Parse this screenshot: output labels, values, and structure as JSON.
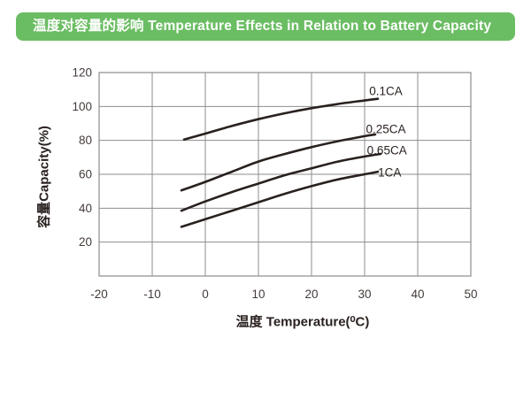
{
  "header": {
    "title": "温度对容量的影响 Temperature Effects in Relation to Battery Capacity",
    "bg_color": "#6bbd63",
    "text_color": "#ffffff"
  },
  "chart_data": {
    "type": "line",
    "title": "温度对容量的影响 Temperature Effects in Relation to Battery Capacity",
    "xlabel": "温度 Temperature(⁰C)",
    "ylabel": "容量Capacity(%)",
    "xlim": [
      -20,
      50
    ],
    "ylim": [
      0,
      120
    ],
    "xticks": [
      -20,
      -10,
      0,
      10,
      20,
      30,
      40,
      50
    ],
    "yticks": [
      20,
      40,
      60,
      80,
      100,
      120
    ],
    "grid": true,
    "legend_position": "inline-right-of-curves",
    "line_color": "#29211f",
    "grid_color": "#8d8d8d",
    "tick_color": "#443c3a",
    "series": [
      {
        "name": "0.1CA",
        "label_at": [
          34,
          109
        ],
        "points": [
          [
            -4,
            80.5
          ],
          [
            0,
            84
          ],
          [
            5,
            88.5
          ],
          [
            10,
            92.5
          ],
          [
            15,
            96
          ],
          [
            20,
            99
          ],
          [
            25,
            101.5
          ],
          [
            30,
            103.5
          ],
          [
            32.5,
            104.5
          ]
        ]
      },
      {
        "name": "0.25CA",
        "label_at": [
          34,
          86.5
        ],
        "points": [
          [
            -4.5,
            50.5
          ],
          [
            0,
            55.5
          ],
          [
            5,
            61.5
          ],
          [
            10,
            67.5
          ],
          [
            15,
            72
          ],
          [
            20,
            76
          ],
          [
            25,
            79.5
          ],
          [
            30,
            82.5
          ],
          [
            32,
            83.5
          ]
        ]
      },
      {
        "name": "0.65CA",
        "label_at": [
          34.2,
          74
        ],
        "points": [
          [
            -4.5,
            38.5
          ],
          [
            0,
            44
          ],
          [
            5,
            49.5
          ],
          [
            10,
            54.5
          ],
          [
            15,
            59.5
          ],
          [
            20,
            63.5
          ],
          [
            25,
            67.5
          ],
          [
            30,
            70.5
          ],
          [
            33,
            72
          ]
        ]
      },
      {
        "name": "1CA",
        "label_at": [
          34.7,
          61
        ],
        "points": [
          [
            -4.5,
            29
          ],
          [
            0,
            33.5
          ],
          [
            5,
            38.5
          ],
          [
            10,
            43.5
          ],
          [
            15,
            48.5
          ],
          [
            20,
            53
          ],
          [
            25,
            57
          ],
          [
            30,
            60
          ],
          [
            32.5,
            61.5
          ]
        ]
      }
    ]
  }
}
